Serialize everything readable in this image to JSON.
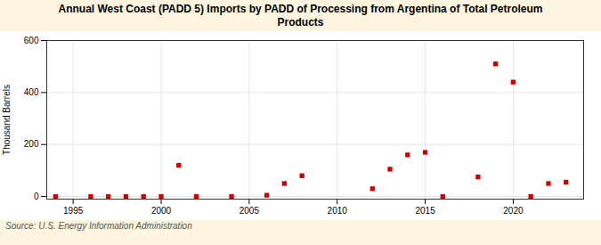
{
  "chart_data": {
    "type": "scatter",
    "title": "Annual West Coast (PADD 5) Imports by PADD of Processing from Argentina of Total Petroleum\nProducts",
    "ylabel": "Thousand Barrels",
    "source": "Source: U.S. Energy Information Administration",
    "x": [
      1994,
      1996,
      1997,
      1998,
      1999,
      2000,
      2001,
      2002,
      2004,
      2006,
      2007,
      2008,
      2012,
      2013,
      2014,
      2015,
      2016,
      2018,
      2019,
      2020,
      2021,
      2022,
      2023
    ],
    "values": [
      0,
      0,
      0,
      0,
      0,
      0,
      120,
      0,
      0,
      5,
      50,
      80,
      30,
      105,
      160,
      170,
      0,
      75,
      510,
      440,
      0,
      50,
      55
    ],
    "color": "#cc0000",
    "marker": "square",
    "xlim": [
      1993.5,
      2024
    ],
    "ylim": [
      -10,
      600
    ],
    "xticks": [
      1995,
      2000,
      2005,
      2010,
      2015,
      2020
    ],
    "yticks": [
      0,
      200,
      400,
      600
    ],
    "grid": true
  }
}
